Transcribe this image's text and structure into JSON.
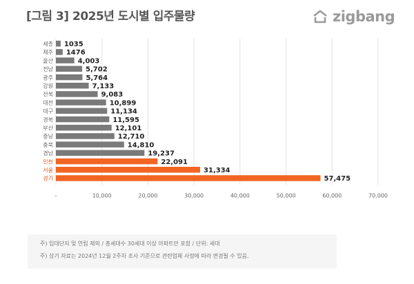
{
  "header": {
    "title": "[그림 3] 2025년 도시별 입주물량",
    "logo_text": "zigbang"
  },
  "chart_data": {
    "type": "bar",
    "orientation": "horizontal",
    "categories": [
      "세종",
      "제주",
      "울산",
      "전남",
      "광주",
      "강원",
      "전북",
      "대전",
      "대구",
      "경북",
      "부산",
      "충남",
      "충북",
      "경남",
      "인천",
      "서울",
      "경기"
    ],
    "values": [
      1035,
      1476,
      4003,
      5702,
      5764,
      7133,
      9083,
      10899,
      11134,
      11595,
      12101,
      12710,
      14810,
      19237,
      22091,
      31334,
      57475
    ],
    "value_labels": [
      "1035",
      "1476",
      "4,003",
      "5,702",
      "5,764",
      "7,133",
      "9,083",
      "10,899",
      "11,134",
      "11,595",
      "12,101",
      "12,710",
      "14,810",
      "19,237",
      "22,091",
      "31,334",
      "57,475"
    ],
    "highlight_categories": [
      "인천",
      "서울",
      "경기"
    ],
    "xticks": [
      "-",
      "10,000",
      "20,000",
      "30,000",
      "40,000",
      "50,000",
      "60,000",
      "70,000"
    ],
    "xlim": [
      0,
      70000
    ],
    "grid": true,
    "colors": {
      "default": "#7a7a7a",
      "highlight": "#f26522"
    }
  },
  "notes": [
    "주) 임대단지 및 연립 제외 / 총세대수 30세대 이상 아파트만 포함 / 단위: 세대",
    "주) 상기 자료는 2024년 12월 2주차 조사 기준으로 관련업체 사정에 따라 변경될 수 있음."
  ]
}
